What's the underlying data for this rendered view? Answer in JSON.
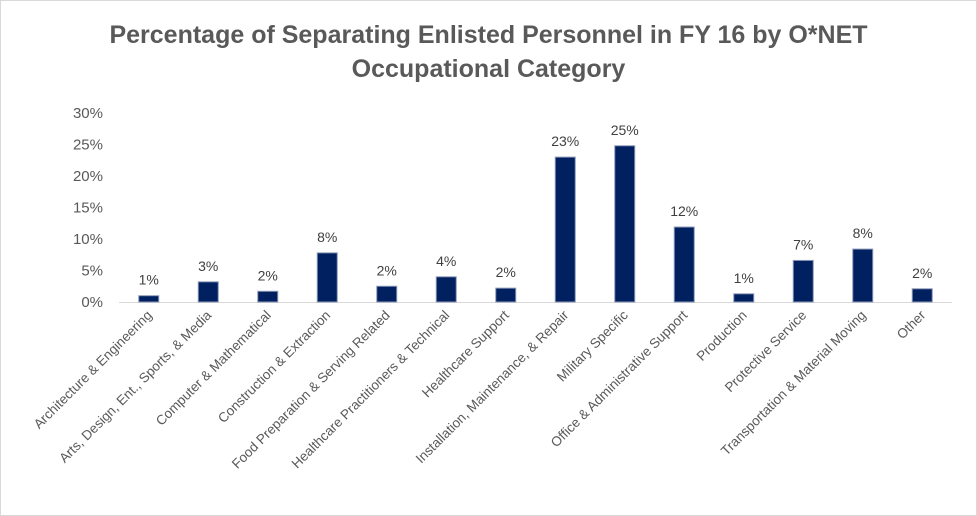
{
  "chart_data": {
    "type": "bar",
    "title_lines": [
      "Percentage of Separating Enlisted Personnel in FY 16 by O*NET",
      "Occupational Category"
    ],
    "categories": [
      "Architecture & Engineering",
      "Arts, Design, Ent., Sports, & Media",
      "Computer & Mathematical",
      "Construction & Extraction",
      "Food Preparation & Serving Related",
      "Healthcare Practitioners & Technical",
      "Healthcare Support",
      "Installation, Maintenance, & Repair",
      "Military Specific",
      "Office & Administrative Support",
      "Production",
      "Protective Service",
      "Transportation & Material Moving",
      "Other"
    ],
    "values": [
      1.0,
      3.2,
      1.7,
      7.8,
      2.5,
      4.0,
      2.2,
      23.0,
      24.8,
      11.9,
      1.3,
      6.6,
      8.4,
      2.1
    ],
    "data_labels": [
      "1%",
      "3%",
      "2%",
      "8%",
      "2%",
      "4%",
      "2%",
      "23%",
      "25%",
      "12%",
      "1%",
      "7%",
      "8%",
      "2%"
    ],
    "y_ticks": [
      "0%",
      "5%",
      "10%",
      "15%",
      "20%",
      "25%",
      "30%"
    ],
    "ylim": [
      0,
      30
    ],
    "xlabel": "",
    "ylabel": "",
    "grid": false,
    "legend": "none",
    "bar_color": "#002060"
  }
}
